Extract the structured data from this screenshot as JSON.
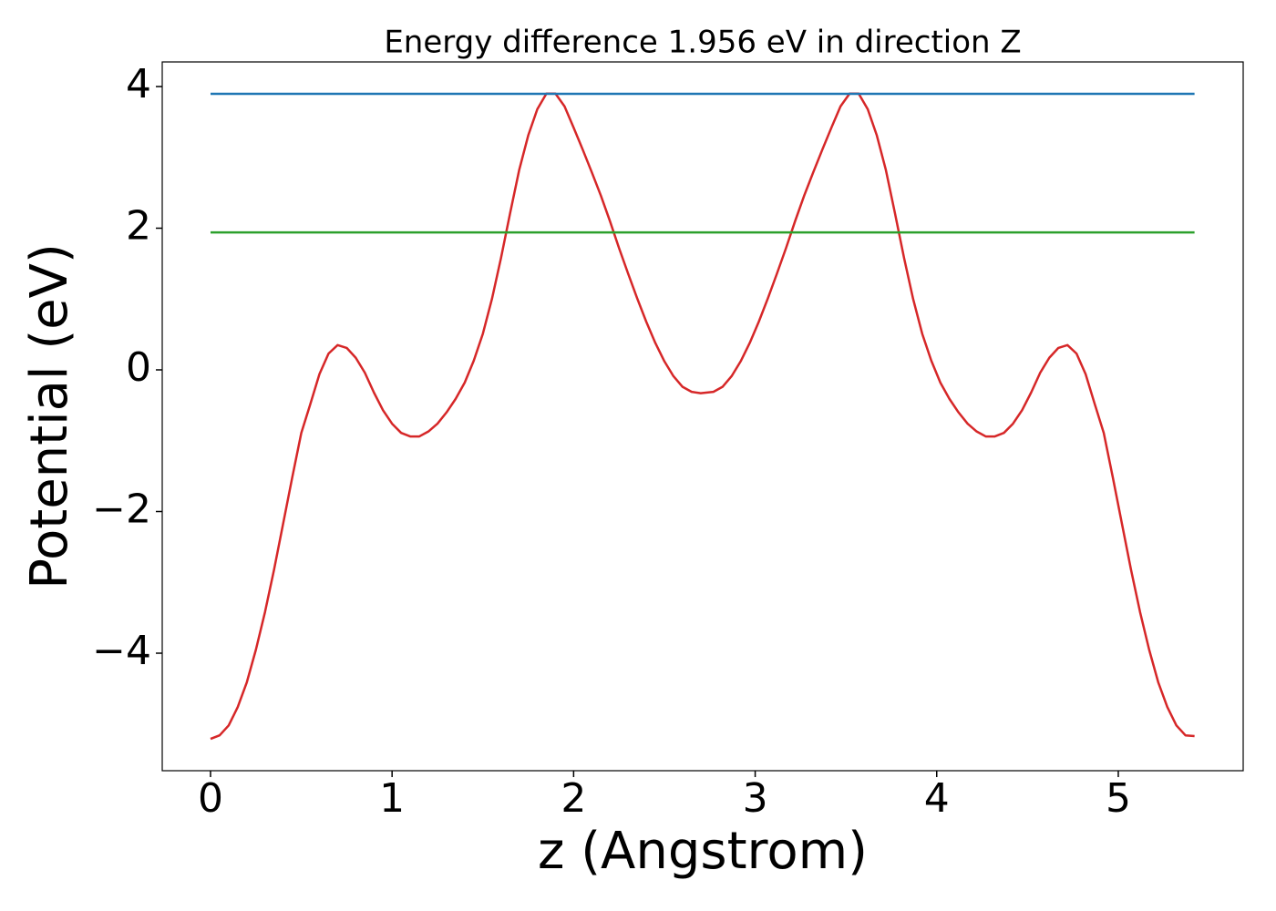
{
  "chart_data": {
    "type": "line",
    "title": "Energy difference 1.956 eV in direction Z",
    "xlabel": "z (Angstrom)",
    "ylabel": "Potential (eV)",
    "xlim": [
      -0.266,
      5.688
    ],
    "ylim": [
      -5.659,
      4.347
    ],
    "xticks": [
      0,
      1,
      2,
      3,
      4,
      5
    ],
    "yticks": [
      {
        "value": -4,
        "label": "−4"
      },
      {
        "value": -2,
        "label": "−2"
      },
      0,
      2,
      4
    ],
    "series": [
      {
        "color": "#d62728",
        "x": [
          0,
          0.05,
          0.1,
          0.15,
          0.2,
          0.25,
          0.3,
          0.35,
          0.4,
          0.45,
          0.5,
          0.55,
          0.6,
          0.65,
          0.7,
          0.75,
          0.8,
          0.85,
          0.9,
          0.95,
          1.0,
          1.05,
          1.1,
          1.15,
          1.2,
          1.25,
          1.3,
          1.35,
          1.4,
          1.45,
          1.5,
          1.55,
          1.6,
          1.65,
          1.7,
          1.75,
          1.8,
          1.85,
          1.9,
          1.95,
          2.0,
          2.05,
          2.1,
          2.15,
          2.2,
          2.25,
          2.3,
          2.35,
          2.4,
          2.45,
          2.5,
          2.55,
          2.6,
          2.65,
          2.7,
          2.77,
          2.82,
          2.87,
          2.92,
          2.97,
          3.02,
          3.07,
          3.12,
          3.17,
          3.22,
          3.27,
          3.32,
          3.37,
          3.42,
          3.47,
          3.52,
          3.57,
          3.62,
          3.67,
          3.72,
          3.77,
          3.82,
          3.87,
          3.92,
          3.97,
          4.02,
          4.07,
          4.12,
          4.17,
          4.22,
          4.27,
          4.32,
          4.37,
          4.42,
          4.47,
          4.52,
          4.57,
          4.62,
          4.67,
          4.72,
          4.77,
          4.82,
          4.87,
          4.92,
          4.97,
          5.02,
          5.07,
          5.12,
          5.17,
          5.22,
          5.27,
          5.32,
          5.37,
          5.42
        ],
        "values": [
          -5.21,
          -5.16,
          -5.02,
          -4.76,
          -4.41,
          -3.95,
          -3.42,
          -2.82,
          -2.17,
          -1.52,
          -0.89,
          -0.48,
          -0.06,
          0.23,
          0.35,
          0.31,
          0.17,
          -0.04,
          -0.32,
          -0.57,
          -0.76,
          -0.89,
          -0.94,
          -0.94,
          -0.87,
          -0.76,
          -0.6,
          -0.41,
          -0.18,
          0.13,
          0.51,
          1.0,
          1.58,
          2.21,
          2.82,
          3.31,
          3.68,
          3.9,
          3.9,
          3.72,
          3.42,
          3.11,
          2.79,
          2.46,
          2.1,
          1.72,
          1.36,
          1.01,
          0.68,
          0.38,
          0.12,
          -0.09,
          -0.24,
          -0.31,
          -0.33,
          -0.31,
          -0.24,
          -0.09,
          0.12,
          0.38,
          0.68,
          1.01,
          1.36,
          1.72,
          2.1,
          2.46,
          2.79,
          3.11,
          3.42,
          3.72,
          3.9,
          3.9,
          3.68,
          3.31,
          2.82,
          2.21,
          1.58,
          1.0,
          0.51,
          0.13,
          -0.18,
          -0.41,
          -0.6,
          -0.76,
          -0.87,
          -0.94,
          -0.94,
          -0.89,
          -0.76,
          -0.57,
          -0.32,
          -0.04,
          0.17,
          0.31,
          0.35,
          0.23,
          -0.06,
          -0.48,
          -0.89,
          -1.52,
          -2.17,
          -2.82,
          -3.42,
          -3.95,
          -4.41,
          -4.76,
          -5.02,
          -5.16,
          -5.17
        ]
      },
      {
        "color": "#1f77b4",
        "x": [
          0,
          5.42
        ],
        "values": [
          3.897,
          3.897
        ]
      },
      {
        "color": "#2ca02c",
        "x": [
          0,
          5.42
        ],
        "values": [
          1.94,
          1.94
        ]
      }
    ]
  }
}
